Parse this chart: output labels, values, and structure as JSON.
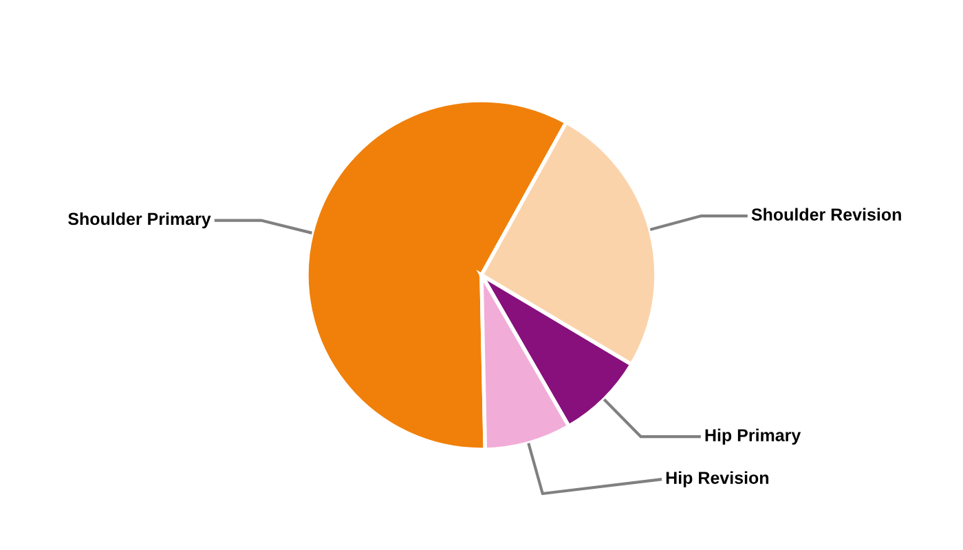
{
  "chart_data": {
    "type": "pie",
    "categories": [
      "Shoulder Primary",
      "Shoulder Revision",
      "Hip Primary",
      "Hip Revision"
    ],
    "values": [
      58.4,
      25.5,
      8.1,
      8.0
    ],
    "colors": [
      "#f0800a",
      "#fbd3ab",
      "#88107c",
      "#f2acd8"
    ]
  }
}
